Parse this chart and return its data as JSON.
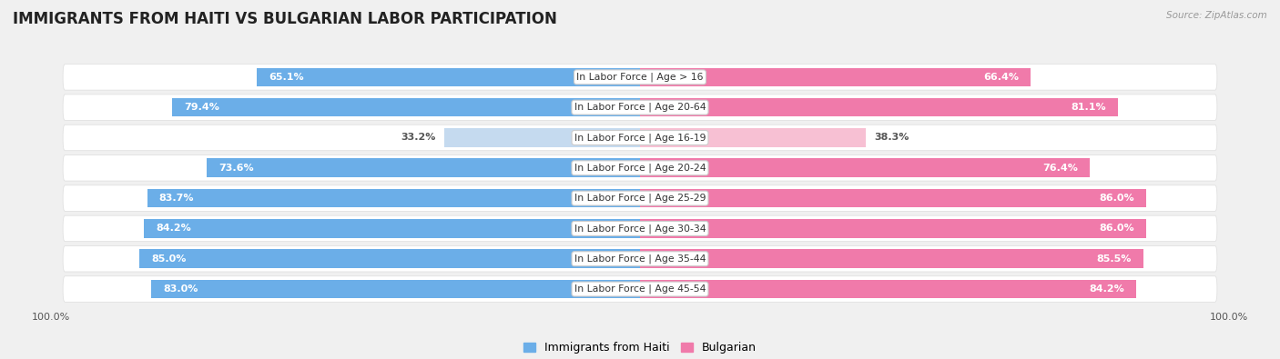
{
  "title": "IMMIGRANTS FROM HAITI VS BULGARIAN LABOR PARTICIPATION",
  "source": "Source: ZipAtlas.com",
  "categories": [
    "In Labor Force | Age > 16",
    "In Labor Force | Age 20-64",
    "In Labor Force | Age 16-19",
    "In Labor Force | Age 20-24",
    "In Labor Force | Age 25-29",
    "In Labor Force | Age 30-34",
    "In Labor Force | Age 35-44",
    "In Labor Force | Age 45-54"
  ],
  "haiti_values": [
    65.1,
    79.4,
    33.2,
    73.6,
    83.7,
    84.2,
    85.0,
    83.0
  ],
  "bulgarian_values": [
    66.4,
    81.1,
    38.3,
    76.4,
    86.0,
    86.0,
    85.5,
    84.2
  ],
  "haiti_color": "#6baee8",
  "bulgarian_color": "#f07aaa",
  "haiti_light_color": "#c5daef",
  "bulgarian_light_color": "#f7c0d3",
  "bar_height": 0.62,
  "background_color": "#f0f0f0",
  "row_bg_color": "#ffffff",
  "max_value": 100.0,
  "legend_haiti": "Immigrants from Haiti",
  "legend_bulgarian": "Bulgarian",
  "title_fontsize": 12,
  "category_fontsize": 7.8,
  "value_fontsize": 8.0,
  "axis_label_fontsize": 8
}
